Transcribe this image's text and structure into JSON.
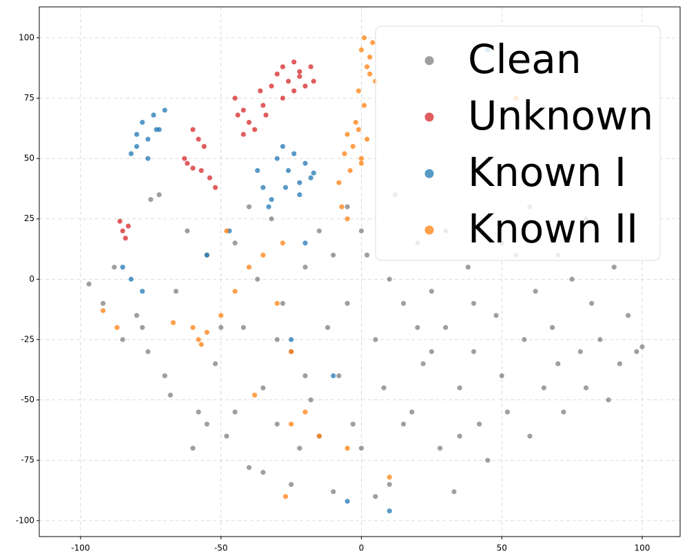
{
  "chart_data": {
    "type": "scatter",
    "xlim": [
      -114.7,
      113.5
    ],
    "ylim": [
      -106.6,
      112.8
    ],
    "xticks": [
      -100,
      -50,
      0,
      50,
      100
    ],
    "yticks": [
      -100,
      -75,
      -50,
      -25,
      0,
      25,
      50,
      75,
      100
    ],
    "grid": true,
    "legend": "upper right",
    "series": [
      {
        "name": "Clean",
        "color": "#7f7f7f",
        "x": [
          -97,
          -92,
          -88,
          -85,
          -80,
          -76,
          -72,
          -70,
          -66,
          -62,
          -58,
          -55,
          -52,
          -48,
          -45,
          -42,
          -40,
          -37,
          -35,
          -32,
          -30,
          -28,
          -25,
          -22,
          -20,
          -18,
          -15,
          -12,
          -10,
          -8,
          -5,
          -3,
          0,
          2,
          5,
          8,
          10,
          12,
          15,
          18,
          20,
          22,
          25,
          28,
          30,
          33,
          35,
          38,
          40,
          42,
          45,
          48,
          50,
          52,
          55,
          58,
          60,
          62,
          65,
          68,
          70,
          72,
          75,
          78,
          80,
          82,
          85,
          88,
          90,
          92,
          95,
          98,
          100,
          -60,
          -50,
          -40,
          -30,
          -20,
          -10,
          0,
          10,
          20,
          30,
          40,
          50,
          60,
          70,
          80,
          -45,
          -35,
          -25,
          -15,
          -5,
          5,
          15,
          25,
          35,
          -78,
          -68,
          -55,
          -75
        ],
        "y": [
          -2,
          -10,
          5,
          -25,
          -15,
          -30,
          35,
          -40,
          -5,
          20,
          -55,
          10,
          -35,
          -65,
          15,
          -20,
          -78,
          0,
          -45,
          25,
          -60,
          -10,
          -30,
          -70,
          5,
          -50,
          20,
          -20,
          -88,
          -40,
          30,
          -60,
          -70,
          10,
          -25,
          -45,
          -85,
          35,
          -10,
          -55,
          15,
          -35,
          -5,
          -70,
          -20,
          -88,
          -45,
          5,
          -30,
          -60,
          -75,
          -15,
          -40,
          -55,
          10,
          -25,
          -65,
          -5,
          -45,
          -20,
          -35,
          -55,
          0,
          -30,
          -45,
          -10,
          -25,
          -50,
          5,
          -35,
          -15,
          -30,
          -28,
          -70,
          -20,
          30,
          -25,
          -40,
          10,
          20,
          0,
          -20,
          20,
          -10,
          15,
          30,
          10,
          25,
          -55,
          -80,
          -85,
          -65,
          -10,
          -90,
          -60,
          -30,
          -65,
          -20,
          -48,
          -60,
          33
        ]
      },
      {
        "name": "Unknown",
        "color": "#d62728",
        "x": [
          -45,
          -42,
          -40,
          -38,
          -35,
          -32,
          -30,
          -28,
          -26,
          -24,
          -22,
          -20,
          -18,
          -17,
          -44,
          -36,
          -28,
          -22,
          -60,
          -58,
          -56,
          -57,
          -54,
          -52,
          -63,
          -62,
          -60,
          -86,
          -85,
          -84,
          -83,
          -42,
          -34,
          -24
        ],
        "y": [
          75,
          70,
          65,
          62,
          72,
          80,
          85,
          88,
          82,
          90,
          86,
          80,
          88,
          82,
          68,
          78,
          75,
          84,
          62,
          58,
          55,
          45,
          42,
          38,
          50,
          48,
          46,
          24,
          20,
          17,
          22,
          60,
          68,
          78
        ]
      },
      {
        "name": "Known I",
        "color": "#1f77b4",
        "x": [
          -82,
          -80,
          -78,
          -76,
          -74,
          -72,
          -70,
          -80,
          -76,
          -73,
          -37,
          -35,
          -33,
          -30,
          -28,
          -26,
          -24,
          -22,
          -20,
          -18,
          -32,
          -27,
          -22,
          -17,
          -85,
          -82,
          -78,
          -55,
          -25,
          -10,
          -47,
          -20,
          10,
          -5,
          45
        ],
        "y": [
          52,
          60,
          65,
          58,
          68,
          62,
          70,
          55,
          50,
          62,
          45,
          38,
          30,
          50,
          55,
          45,
          52,
          40,
          48,
          42,
          33,
          38,
          35,
          44,
          5,
          0,
          -5,
          10,
          -25,
          -40,
          20,
          15,
          -96,
          -92,
          95
        ]
      },
      {
        "name": "Known II",
        "color": "#ff7f0e",
        "x": [
          -5,
          -3,
          -1,
          0,
          2,
          -8,
          -6,
          -4,
          -2,
          0,
          -7,
          -5,
          0,
          1,
          2,
          3,
          4,
          5,
          -1,
          1,
          3,
          -60,
          -58,
          -57,
          -55,
          -50,
          -45,
          -40,
          -35,
          -30,
          -25,
          -20,
          -15,
          -38,
          -28,
          -48,
          -67,
          -87,
          -27,
          -25,
          10,
          55,
          -5,
          -92
        ],
        "y": [
          60,
          55,
          62,
          50,
          58,
          40,
          52,
          45,
          65,
          48,
          30,
          25,
          95,
          100,
          88,
          92,
          98,
          82,
          78,
          72,
          85,
          -20,
          -25,
          -27,
          -22,
          -15,
          -5,
          5,
          10,
          -10,
          -30,
          -55,
          -65,
          -48,
          15,
          20,
          -18,
          -20,
          -90,
          -60,
          -82,
          75,
          -70,
          -13
        ]
      }
    ]
  }
}
